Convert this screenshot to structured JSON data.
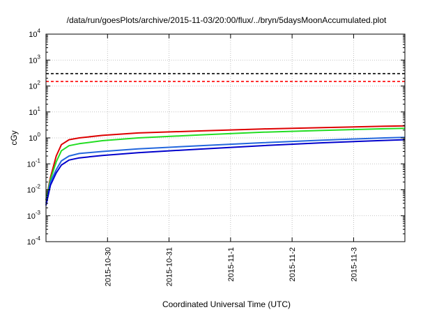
{
  "chart_data": {
    "type": "line",
    "title": "/data/run/goesPlots/archive/2015-11-03/20:00/flux/../bryn/5daysMoonAccumulated.plot",
    "xlabel": "Coordinated Universal Time (UTC)",
    "ylabel": "cGy",
    "xlim": [
      "2015-10-29T00:00",
      "2015-11-03T20:00"
    ],
    "ylim": [
      0.0001,
      10000
    ],
    "yscale": "log",
    "grid": true,
    "x_ticks": [
      "2015-10-30",
      "2015-10-31",
      "2015-11-1",
      "2015-11-2",
      "2015-11-3"
    ],
    "y_ticks": [
      {
        "value": 0.0001,
        "base": "10",
        "exp": "-4"
      },
      {
        "value": 0.001,
        "base": "10",
        "exp": "-3"
      },
      {
        "value": 0.01,
        "base": "10",
        "exp": "-2"
      },
      {
        "value": 0.1,
        "base": "10",
        "exp": "-1"
      },
      {
        "value": 1,
        "base": "10",
        "exp": "0"
      },
      {
        "value": 10,
        "base": "10",
        "exp": "1"
      },
      {
        "value": 100,
        "base": "10",
        "exp": "2"
      },
      {
        "value": 1000,
        "base": "10",
        "exp": "3"
      },
      {
        "value": 10000,
        "base": "10",
        "exp": "4"
      }
    ],
    "reference_lines": [
      {
        "y": 300,
        "color": "#000000",
        "style": "dashed"
      },
      {
        "y": 150,
        "color": "#ff0000",
        "style": "dashed"
      }
    ],
    "series": [
      {
        "color": "#dd0000",
        "points": [
          [
            "2015-10-29T00:00",
            0.004
          ],
          [
            "2015-10-29T01:45",
            0.03
          ],
          [
            "2015-10-29T04:00",
            0.2
          ],
          [
            "2015-10-29T06:00",
            0.55
          ],
          [
            "2015-10-29T09:00",
            0.85
          ],
          [
            "2015-10-29T13:00",
            1.0
          ],
          [
            "2015-10-29T22:00",
            1.25
          ],
          [
            "2015-10-30T12:00",
            1.55
          ],
          [
            "2015-10-31T12:00",
            1.85
          ],
          [
            "2015-11-01T12:00",
            2.2
          ],
          [
            "2015-11-02T12:00",
            2.5
          ],
          [
            "2015-11-03T12:00",
            2.8
          ],
          [
            "2015-11-03T20:00",
            2.9
          ]
        ]
      },
      {
        "color": "#22dd22",
        "points": [
          [
            "2015-10-29T00:00",
            0.004
          ],
          [
            "2015-10-29T01:45",
            0.025
          ],
          [
            "2015-10-29T04:00",
            0.12
          ],
          [
            "2015-10-29T06:00",
            0.32
          ],
          [
            "2015-10-29T09:00",
            0.5
          ],
          [
            "2015-10-29T13:00",
            0.6
          ],
          [
            "2015-10-29T22:00",
            0.78
          ],
          [
            "2015-10-30T12:00",
            1.0
          ],
          [
            "2015-10-31T12:00",
            1.3
          ],
          [
            "2015-11-01T12:00",
            1.65
          ],
          [
            "2015-11-02T12:00",
            1.95
          ],
          [
            "2015-11-03T12:00",
            2.25
          ],
          [
            "2015-11-03T20:00",
            2.35
          ]
        ]
      },
      {
        "color": "#2266dd",
        "points": [
          [
            "2015-10-29T00:00",
            0.003
          ],
          [
            "2015-10-29T01:45",
            0.02
          ],
          [
            "2015-10-29T04:00",
            0.06
          ],
          [
            "2015-10-29T06:00",
            0.13
          ],
          [
            "2015-10-29T09:00",
            0.2
          ],
          [
            "2015-10-29T13:00",
            0.25
          ],
          [
            "2015-10-29T22:00",
            0.3
          ],
          [
            "2015-10-30T12:00",
            0.38
          ],
          [
            "2015-10-31T12:00",
            0.5
          ],
          [
            "2015-11-01T12:00",
            0.65
          ],
          [
            "2015-11-02T12:00",
            0.82
          ],
          [
            "2015-11-03T12:00",
            1.0
          ],
          [
            "2015-11-03T20:00",
            1.05
          ]
        ]
      },
      {
        "color": "#0000cc",
        "points": [
          [
            "2015-10-29T00:00",
            0.0025
          ],
          [
            "2015-10-29T01:45",
            0.015
          ],
          [
            "2015-10-29T04:00",
            0.045
          ],
          [
            "2015-10-29T06:00",
            0.09
          ],
          [
            "2015-10-29T09:00",
            0.14
          ],
          [
            "2015-10-29T13:00",
            0.17
          ],
          [
            "2015-10-29T22:00",
            0.21
          ],
          [
            "2015-10-30T12:00",
            0.27
          ],
          [
            "2015-10-31T12:00",
            0.37
          ],
          [
            "2015-11-01T12:00",
            0.5
          ],
          [
            "2015-11-02T12:00",
            0.65
          ],
          [
            "2015-11-03T12:00",
            0.8
          ],
          [
            "2015-11-03T20:00",
            0.85
          ]
        ]
      }
    ]
  }
}
